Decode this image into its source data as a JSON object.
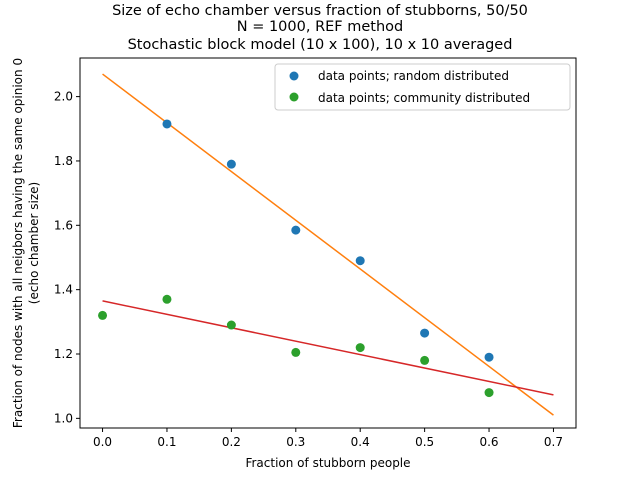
{
  "chart_data": {
    "type": "scatter",
    "title_lines": [
      "Size of echo chamber versus fraction of stubborns, 50/50",
      "N = 1000, REF method",
      "Stochastic block model (10 x 100), 10 x 10 averaged"
    ],
    "xlabel": "Fraction of stubborn people",
    "ylabel_lines": [
      "Fraction of nodes with all neigbors having the same opinion 0",
      "(echo chamber size)"
    ],
    "xlim": [
      -0.035,
      0.735
    ],
    "ylim": [
      0.97,
      2.12
    ],
    "x_ticks": [
      0.0,
      0.1,
      0.2,
      0.3,
      0.4,
      0.5,
      0.6,
      0.7
    ],
    "x_tick_labels": [
      "0.0",
      "0.1",
      "0.2",
      "0.3",
      "0.4",
      "0.5",
      "0.6",
      "0.7"
    ],
    "y_ticks": [
      1.0,
      1.2,
      1.4,
      1.6,
      1.8,
      2.0
    ],
    "y_tick_labels": [
      "1.0",
      "1.2",
      "1.4",
      "1.6",
      "1.8",
      "2.0"
    ],
    "legend_position": "top-right",
    "series": [
      {
        "name": "data points; random distributed",
        "color": "#1f77b4",
        "points": [
          [
            0.1,
            1.915
          ],
          [
            0.2,
            1.79
          ],
          [
            0.3,
            1.585
          ],
          [
            0.4,
            1.49
          ],
          [
            0.5,
            1.265
          ],
          [
            0.6,
            1.19
          ]
        ]
      },
      {
        "name": "data points; community distributed",
        "color": "#2ca02c",
        "points": [
          [
            0.0,
            1.32
          ],
          [
            0.1,
            1.37
          ],
          [
            0.2,
            1.29
          ],
          [
            0.3,
            1.205
          ],
          [
            0.4,
            1.22
          ],
          [
            0.5,
            1.18
          ],
          [
            0.6,
            1.08
          ]
        ]
      }
    ],
    "fit_lines": [
      {
        "color": "#ff7f0e",
        "from": [
          0.0,
          2.07
        ],
        "to": [
          0.7,
          1.01
        ]
      },
      {
        "color": "#d62728",
        "from": [
          0.0,
          1.365
        ],
        "to": [
          0.7,
          1.073
        ]
      }
    ]
  }
}
